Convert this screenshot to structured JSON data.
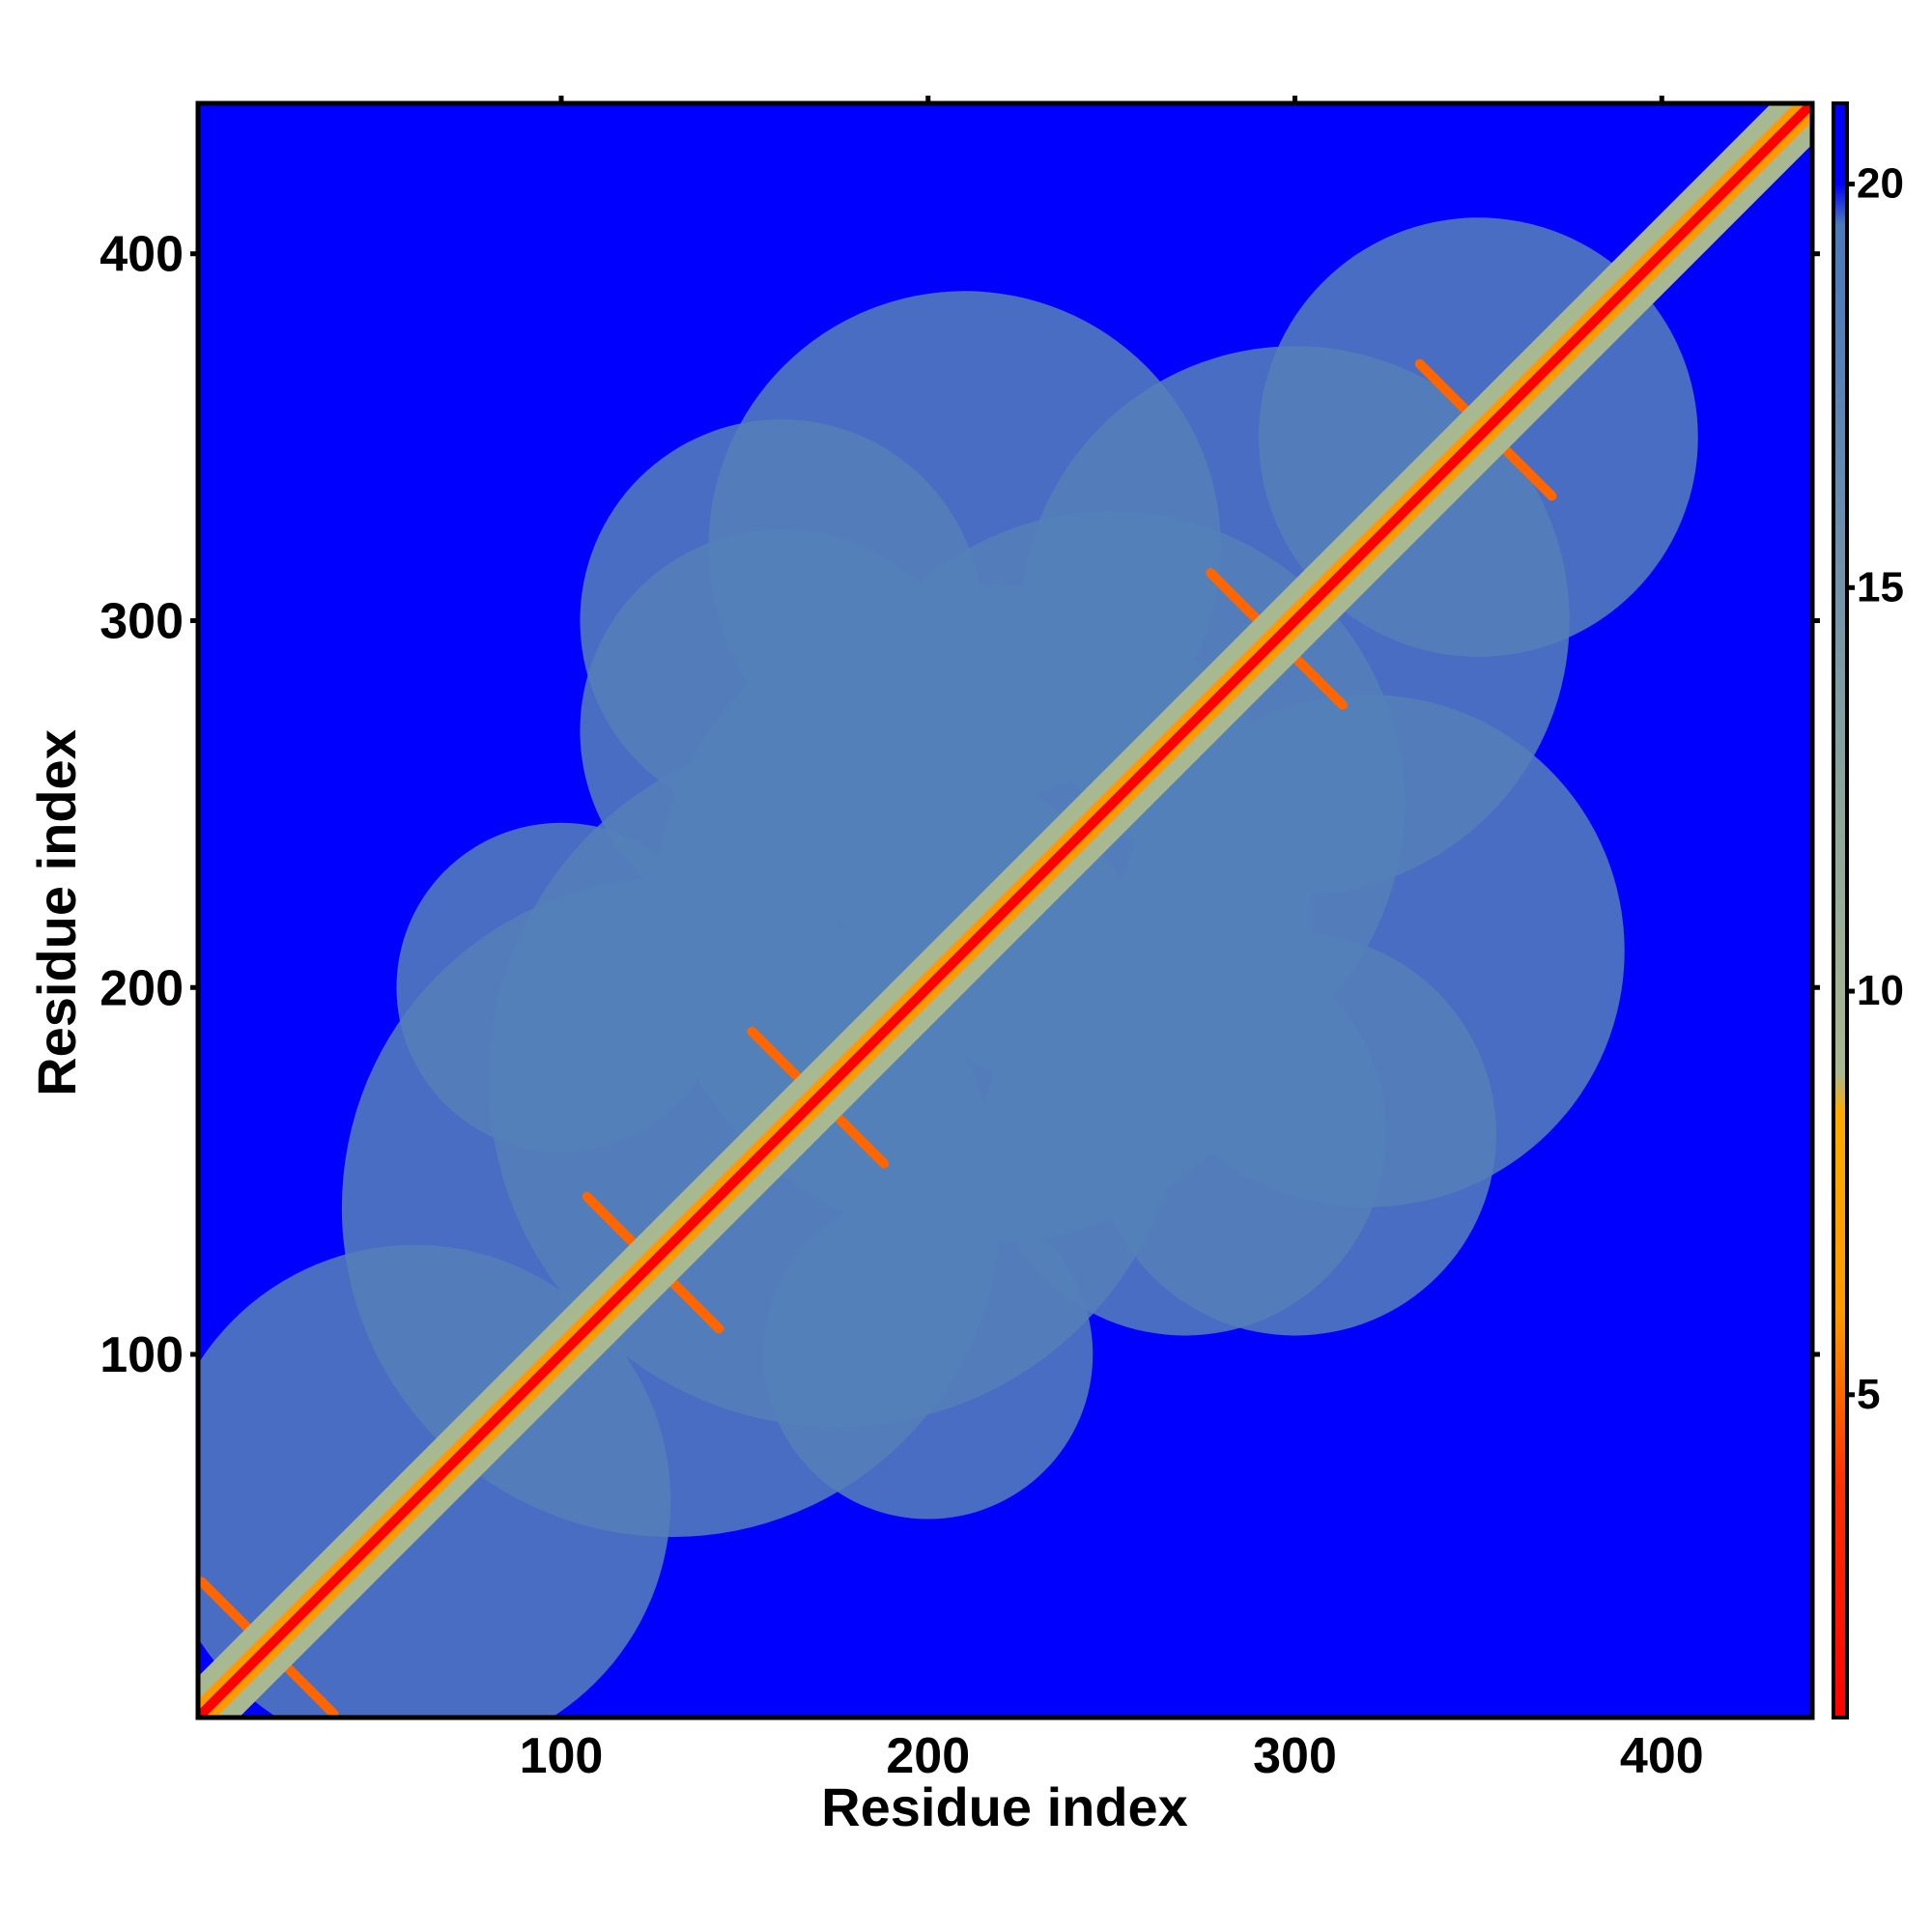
{
  "chart_data": {
    "type": "heatmap",
    "title": "",
    "xlabel": "Residue index",
    "ylabel": "Residue index",
    "xlim": [
      1,
      441
    ],
    "ylim": [
      1,
      441
    ],
    "x_ticks": [
      100,
      200,
      300,
      400
    ],
    "y_ticks": [
      100,
      200,
      300,
      400
    ],
    "grid": false,
    "legend": "colorbar-right",
    "colorbar": {
      "range": [
        1,
        21
      ],
      "ticks": [
        5,
        10,
        15,
        20
      ],
      "stops": [
        {
          "value": 1,
          "color": "#ff0000"
        },
        {
          "value": 4,
          "color": "#ff3300"
        },
        {
          "value": 6,
          "color": "#ff9900"
        },
        {
          "value": 8.5,
          "color": "#ffaa00"
        },
        {
          "value": 9,
          "color": "#a8b890"
        },
        {
          "value": 12,
          "color": "#8fa89a"
        },
        {
          "value": 18,
          "color": "#5580b8"
        },
        {
          "value": 19.5,
          "color": "#4a7ab8"
        },
        {
          "value": 20,
          "color": "#0000ff"
        },
        {
          "value": 21,
          "color": "#0000ff"
        }
      ]
    },
    "matrix_description": "symmetric residue-residue distance map; red diagonal (low distance), blue background (distance >= 20)",
    "contact_bands": [
      {
        "x": 5,
        "y": 5,
        "note": "diagonal start"
      },
      {
        "x": 125,
        "y": 125,
        "note": "helix crossing"
      },
      {
        "x": 170,
        "y": 170,
        "note": "helix crossing"
      },
      {
        "x": 295,
        "y": 295,
        "note": "helix crossing"
      },
      {
        "x": 352,
        "y": 352,
        "note": "helix crossing"
      },
      {
        "x": 20,
        "y": 20,
        "note": "helix crossing"
      }
    ],
    "diagonal_end": 441
  }
}
